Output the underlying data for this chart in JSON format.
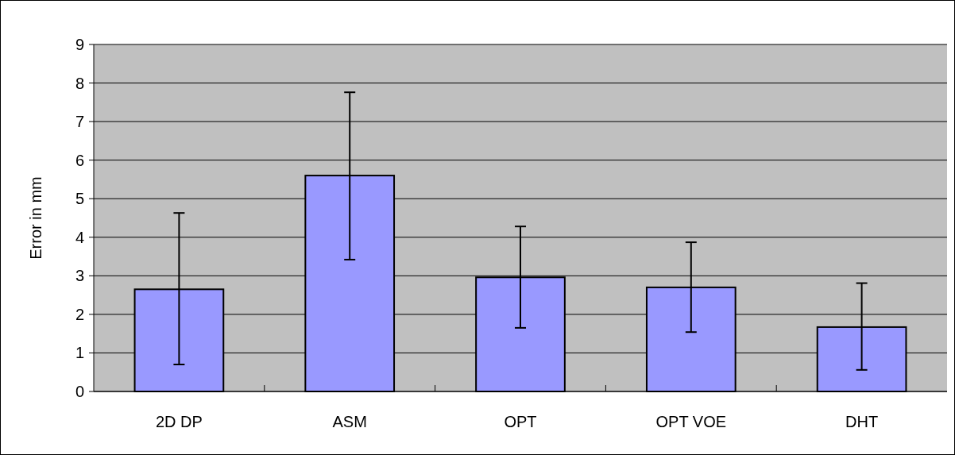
{
  "chart_data": {
    "type": "bar",
    "ylabel": "Error in mm",
    "categories": [
      "2D DP",
      "ASM",
      "OPT",
      "OPT VOE",
      "DHT"
    ],
    "values": [
      2.65,
      5.6,
      2.96,
      2.7,
      1.67
    ],
    "errors": [
      [
        0.7,
        4.63
      ],
      [
        3.42,
        7.76
      ],
      [
        1.65,
        4.28
      ],
      [
        1.54,
        3.87
      ],
      [
        0.56,
        2.81
      ]
    ],
    "color": "#9999ff",
    "ylim": [
      0,
      9
    ],
    "yticks": [
      0,
      1,
      2,
      3,
      4,
      5,
      6,
      7,
      8,
      9
    ],
    "grid": "y"
  }
}
